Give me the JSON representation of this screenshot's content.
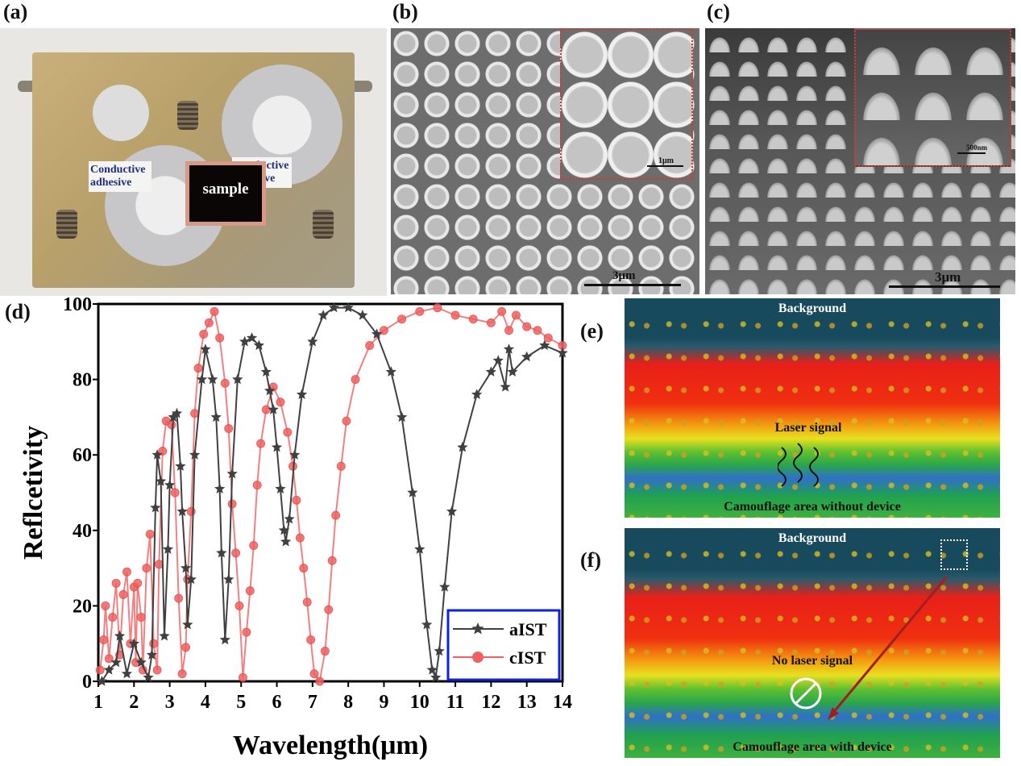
{
  "panels": {
    "a": "(a)",
    "b": "(b)",
    "c": "(c)",
    "d": "(d)",
    "e": "(e)",
    "f": "(f)"
  },
  "photo": {
    "left_tag": "Conductive adhesive",
    "right_tag": "Conductive adhesive",
    "sample": "sample"
  },
  "sem_b": {
    "scale": "3μm",
    "inset_scale": "1μm"
  },
  "sem_c": {
    "scale": "3μm",
    "inset_scale": "500nm"
  },
  "lidar_e": {
    "background": "Background",
    "signal": "Laser signal",
    "area": "Camouflage area without device"
  },
  "lidar_f": {
    "background": "Background",
    "signal": "No laser signal",
    "area": "Camouflage area with device"
  },
  "chart_data": {
    "type": "line",
    "xlabel": "Wavelength(μm)",
    "ylabel": "Reflcetivity",
    "xlim": [
      1,
      14
    ],
    "ylim": [
      0,
      100
    ],
    "xticks": [
      1,
      2,
      3,
      4,
      5,
      6,
      7,
      8,
      9,
      10,
      11,
      12,
      13,
      14
    ],
    "yticks": [
      0,
      20,
      40,
      60,
      80,
      100
    ],
    "legend": "bottom-right",
    "series": [
      {
        "name": "aIST",
        "color": "#404040",
        "marker": "star",
        "x": [
          1.1,
          1.3,
          1.5,
          1.6,
          1.8,
          2.0,
          2.2,
          2.4,
          2.5,
          2.6,
          2.65,
          2.75,
          2.85,
          2.95,
          3.0,
          3.1,
          3.2,
          3.3,
          3.35,
          3.45,
          3.5,
          3.6,
          3.7,
          3.9,
          4.0,
          4.2,
          4.3,
          4.4,
          4.45,
          4.55,
          4.65,
          4.75,
          4.9,
          5.1,
          5.3,
          5.5,
          5.7,
          5.8,
          5.9,
          6.0,
          6.1,
          6.2,
          6.25,
          6.35,
          6.5,
          6.7,
          7.0,
          7.3,
          7.6,
          8.0,
          8.4,
          8.8,
          9.2,
          9.5,
          9.8,
          10.0,
          10.2,
          10.35,
          10.45,
          10.55,
          10.7,
          10.9,
          11.2,
          11.6,
          12.0,
          12.2,
          12.4,
          12.5,
          12.6,
          13.0,
          13.5,
          14.0
        ],
        "y": [
          0,
          3,
          5,
          12,
          2,
          10,
          5,
          1,
          7,
          46,
          60,
          53,
          12,
          35,
          52,
          70,
          71,
          57,
          45,
          30,
          15,
          27,
          60,
          80,
          88,
          80,
          70,
          51,
          34,
          11,
          27,
          55,
          80,
          90,
          91,
          89,
          82,
          77,
          72,
          62,
          51,
          40,
          37,
          43,
          60,
          76,
          90,
          97,
          99,
          99,
          97,
          92,
          82,
          70,
          50,
          35,
          15,
          3,
          1,
          8,
          25,
          45,
          62,
          76,
          82,
          85,
          78,
          88,
          82,
          86,
          89,
          87
        ]
      },
      {
        "name": "cIST",
        "color": "#f06060",
        "marker": "circle",
        "x": [
          1.05,
          1.15,
          1.2,
          1.3,
          1.4,
          1.5,
          1.6,
          1.7,
          1.8,
          1.9,
          2.0,
          2.05,
          2.1,
          2.2,
          2.25,
          2.35,
          2.45,
          2.55,
          2.65,
          2.7,
          2.8,
          2.9,
          3.05,
          3.15,
          3.25,
          3.35,
          3.45,
          3.5,
          3.6,
          3.7,
          3.8,
          3.95,
          4.1,
          4.25,
          4.4,
          4.55,
          4.65,
          4.75,
          4.85,
          4.95,
          5.05,
          5.15,
          5.25,
          5.35,
          5.45,
          5.55,
          5.7,
          5.9,
          6.1,
          6.3,
          6.45,
          6.55,
          6.65,
          6.75,
          6.85,
          6.95,
          7.05,
          7.2,
          7.35,
          7.45,
          7.55,
          7.65,
          7.8,
          7.95,
          8.2,
          8.6,
          9.0,
          9.5,
          10.0,
          10.5,
          11.0,
          11.5,
          12.0,
          12.3,
          12.5,
          12.7,
          13.0,
          13.3,
          13.6,
          14.0
        ],
        "y": [
          3,
          11,
          20,
          6,
          17,
          26,
          7,
          23,
          29,
          10,
          25,
          5,
          26,
          17,
          3,
          30,
          39,
          10,
          3,
          31,
          61,
          69,
          68,
          50,
          22,
          2,
          9,
          27,
          45,
          71,
          83,
          92,
          95,
          98,
          91,
          79,
          67,
          47,
          34,
          20,
          1,
          13,
          24,
          36,
          52,
          63,
          72,
          78,
          74,
          66,
          57,
          48,
          38,
          30,
          21,
          11,
          2,
          0,
          8,
          19,
          32,
          44,
          57,
          69,
          80,
          89,
          93,
          96,
          98,
          99,
          97,
          96,
          95,
          98,
          93,
          97,
          94,
          93,
          91,
          89
        ]
      }
    ]
  }
}
